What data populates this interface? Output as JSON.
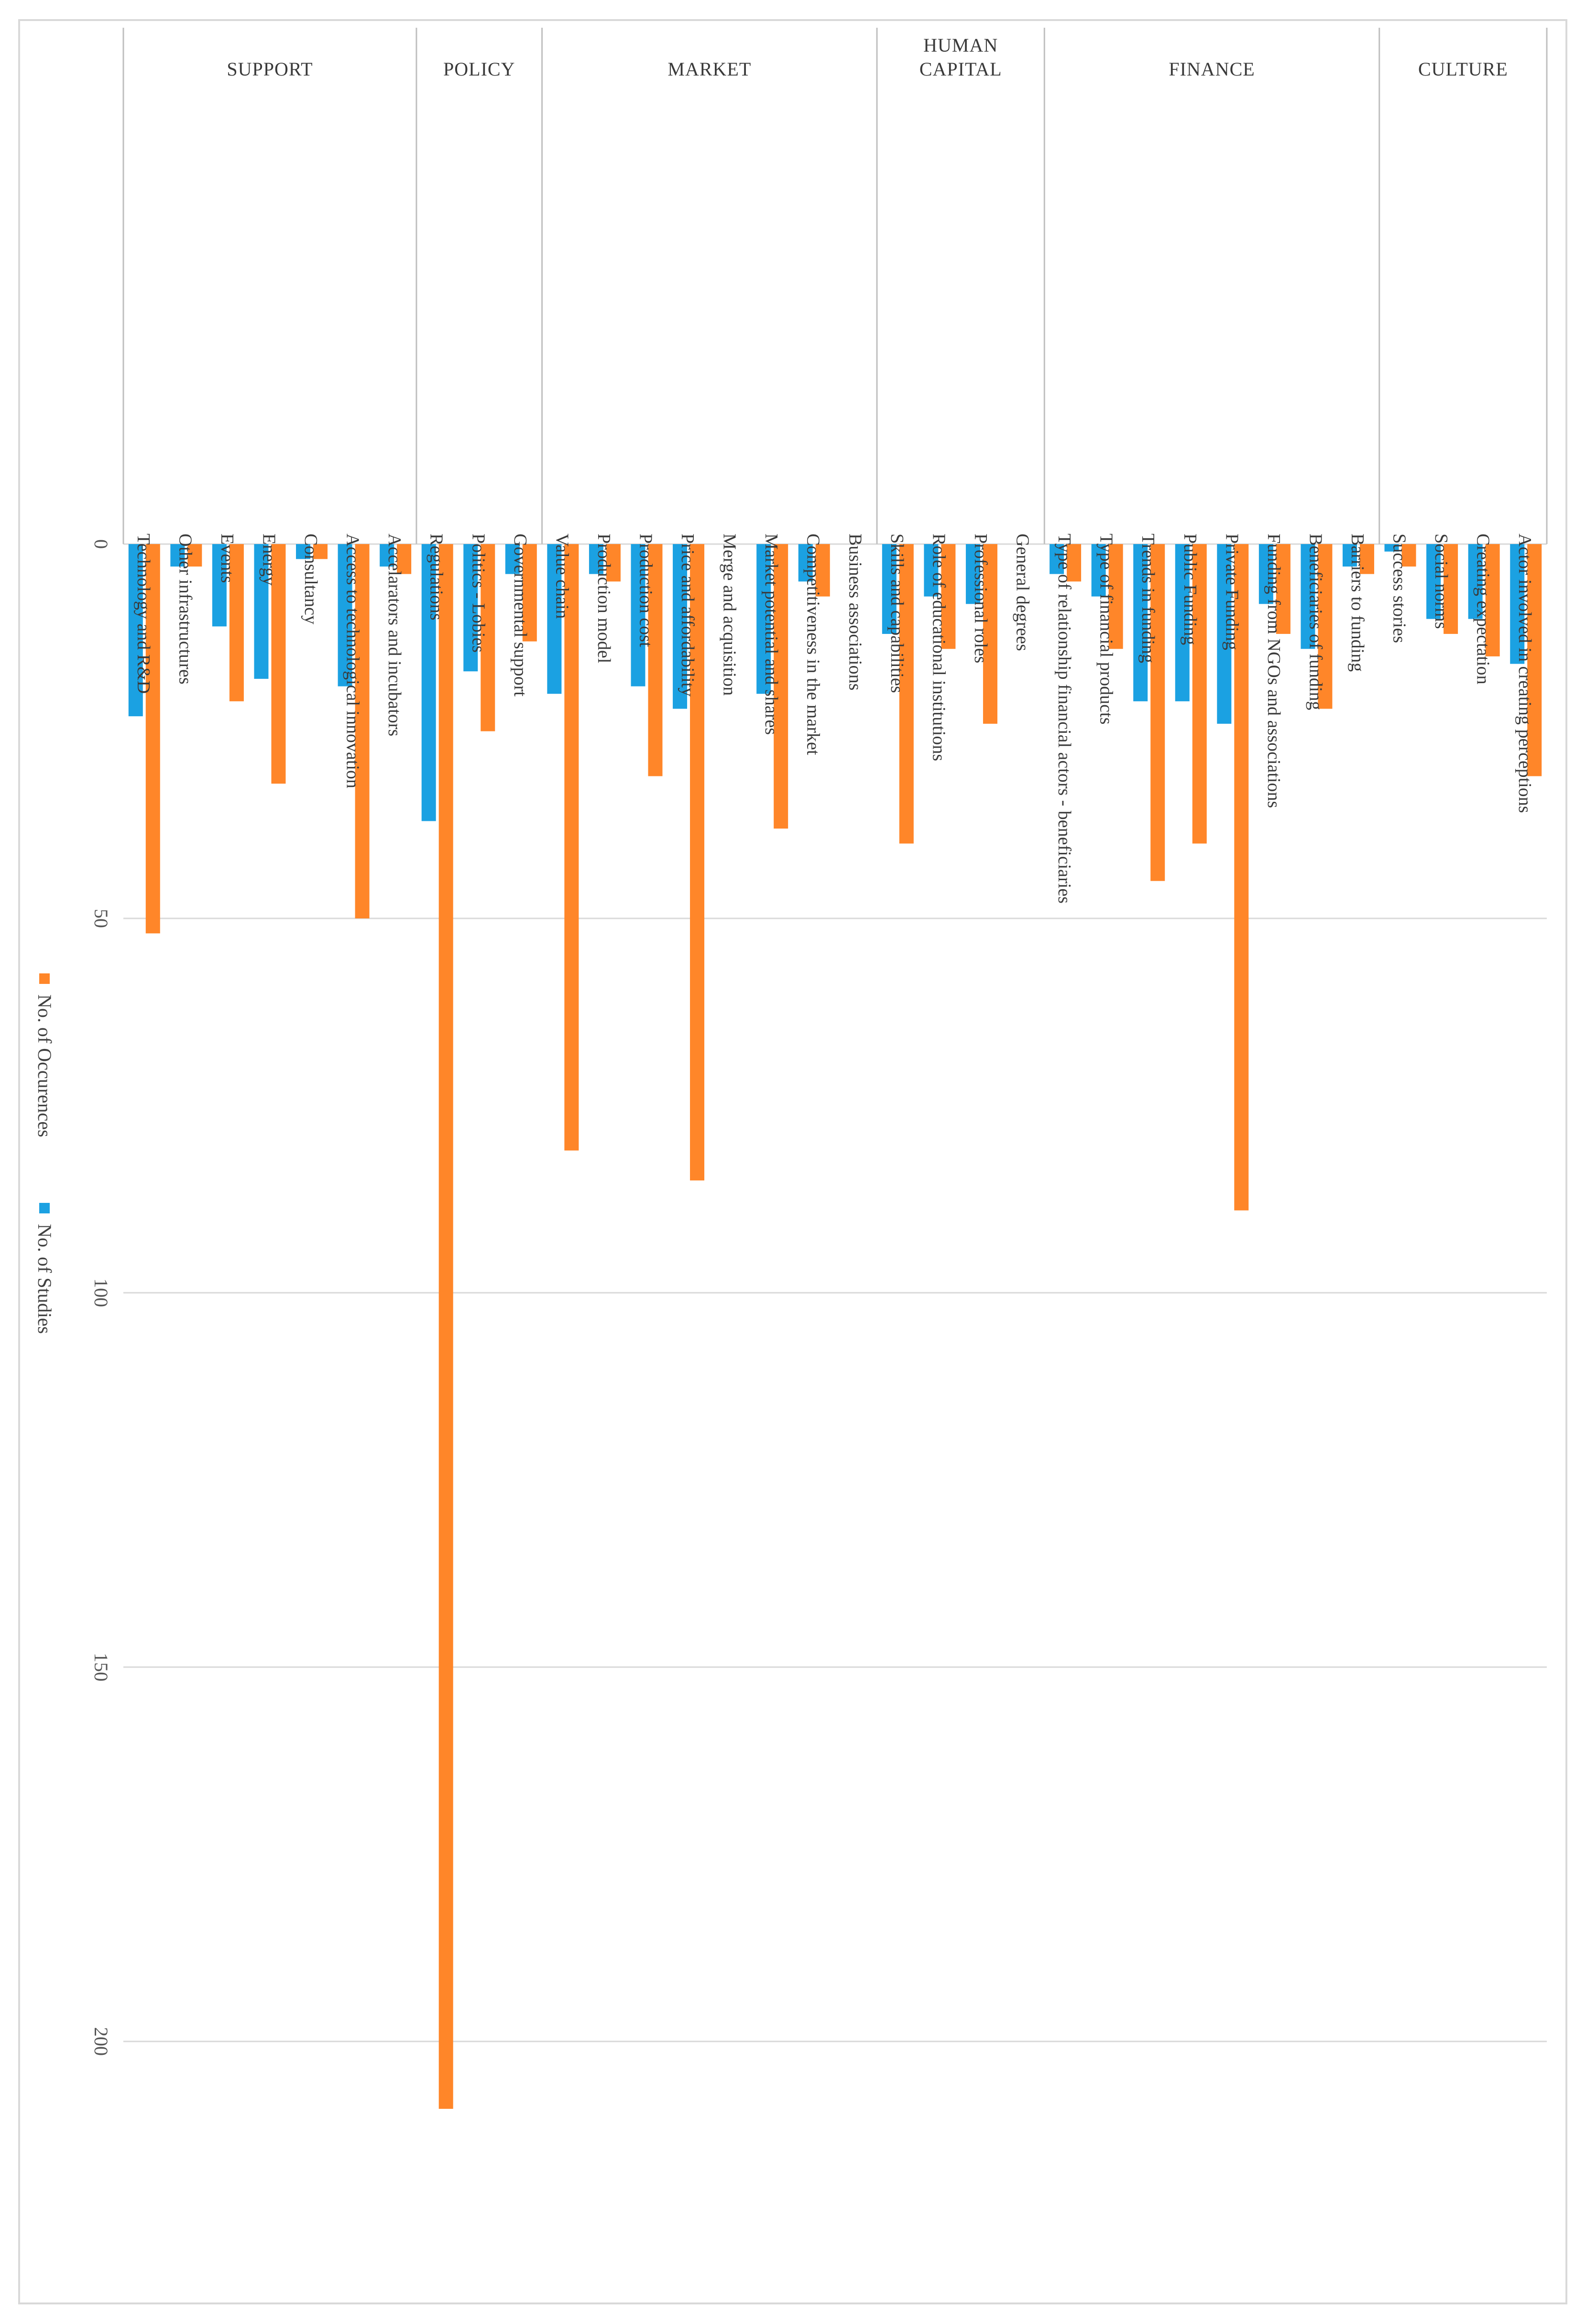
{
  "chart_data": {
    "type": "bar",
    "orientation": "rotated-90",
    "groups": [
      {
        "name": "SUPPORT",
        "start": 0,
        "end": 6
      },
      {
        "name": "POLICY",
        "start": 7,
        "end": 9
      },
      {
        "name": "MARKET",
        "start": 10,
        "end": 17
      },
      {
        "name": "HUMAN CAPITAL",
        "start": 18,
        "end": 21
      },
      {
        "name": "FINANCE",
        "start": 22,
        "end": 29
      },
      {
        "name": "CULTURE",
        "start": 30,
        "end": 33
      }
    ],
    "categories": [
      "Technology and R&D",
      "Other infrastructures",
      "Events",
      "Energy",
      "Consultancy",
      "Access to technological innovation",
      "Accelarators and incubators",
      "Regulations",
      "Politics - Lobies",
      "Governmental support",
      "Value chain",
      "Production model",
      "Production cost",
      "Price and affordability",
      "Merge and acquisition",
      "Market potential and shares",
      "Competitiveness in the market",
      "Business associations",
      "Skills and capabilities",
      "Role of educational institutions",
      "Professional roles",
      "General degrees",
      "Type of relationship financial actors - beneficiaries",
      "Type of financial products",
      "Trends in funding",
      "Public Funding",
      "Private Funding",
      "Funding from NGOs and associations",
      "Beneficiaries of funding",
      "Barriers to funding",
      "Success stories",
      "Social norms",
      "Creating expectation",
      "Actor involved in creating perceptions"
    ],
    "series": [
      {
        "name": "No. of Studies",
        "color": "#1ba1e2",
        "values": [
          23,
          3,
          11,
          18,
          2,
          19,
          3,
          37,
          17,
          4,
          20,
          4,
          19,
          22,
          0,
          20,
          5,
          0,
          12,
          7,
          8,
          0,
          4,
          7,
          21,
          21,
          24,
          8,
          14,
          3,
          1,
          10,
          10,
          16
        ]
      },
      {
        "name": "No. of Occurences",
        "color": "#ff8629",
        "values": [
          52,
          3,
          21,
          32,
          2,
          50,
          4,
          209,
          25,
          13,
          81,
          5,
          31,
          85,
          0,
          38,
          7,
          0,
          40,
          14,
          24,
          0,
          5,
          14,
          45,
          40,
          89,
          12,
          22,
          4,
          3,
          12,
          15,
          31
        ]
      }
    ],
    "value_axis": {
      "min": 0,
      "max": 200,
      "ticks": [
        0,
        50,
        100,
        150,
        200
      ]
    },
    "gridlines": true,
    "legend": {
      "position": "left",
      "entries": [
        "No. of Occurences",
        "No. of Studies"
      ]
    }
  }
}
